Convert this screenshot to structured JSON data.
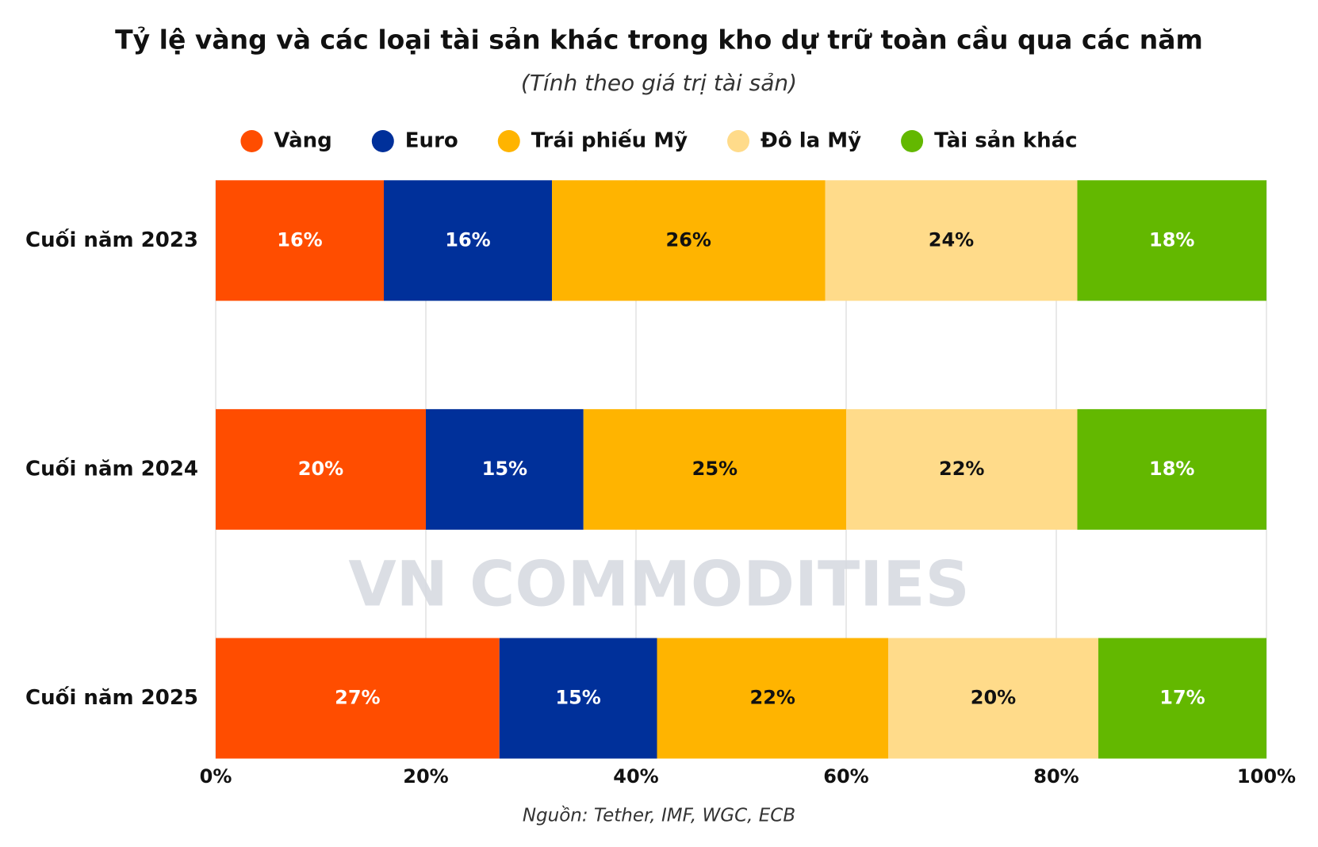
{
  "chart_data": {
    "type": "stacked-barh",
    "title": "Tỷ lệ vàng và các loại tài sản khác trong kho dự trữ toàn cầu qua các năm",
    "subtitle": "(Tính theo giá trị tài sản)",
    "source": "Nguồn: Tether, IMF, WGC, ECB",
    "watermark": "VN COMMODITIES",
    "categories": [
      "Cuối năm 2023",
      "Cuối năm 2024",
      "Cuối năm 2025"
    ],
    "series": [
      {
        "name": "Vàng",
        "color": "#ff4d00",
        "values": [
          16,
          20,
          27
        ],
        "value_labels": [
          "16%",
          "20%",
          "27%"
        ]
      },
      {
        "name": "Euro",
        "color": "#00309a",
        "values": [
          16,
          15,
          15
        ],
        "value_labels": [
          "16%",
          "15%",
          "15%"
        ]
      },
      {
        "name": "Trái phiếu Mỹ",
        "color": "#ffb400",
        "values": [
          26,
          25,
          22
        ],
        "value_labels": [
          "26%",
          "25%",
          "22%"
        ]
      },
      {
        "name": "Đô la Mỹ",
        "color": "#ffdb8a",
        "values": [
          24,
          22,
          20
        ],
        "value_labels": [
          "24%",
          "22%",
          "20%"
        ]
      },
      {
        "name": "Tài sản khác",
        "color": "#63b800",
        "values": [
          18,
          18,
          17
        ],
        "value_labels": [
          "18%",
          "18%",
          "17%"
        ]
      }
    ],
    "xlim": [
      0,
      100
    ],
    "xticks": [
      {
        "value": 0,
        "label": "0%"
      },
      {
        "value": 20,
        "label": "20%"
      },
      {
        "value": 40,
        "label": "40%"
      },
      {
        "value": 60,
        "label": "60%"
      },
      {
        "value": 80,
        "label": "80%"
      },
      {
        "value": 100,
        "label": "100%"
      }
    ],
    "grid": true,
    "legend": "top"
  }
}
